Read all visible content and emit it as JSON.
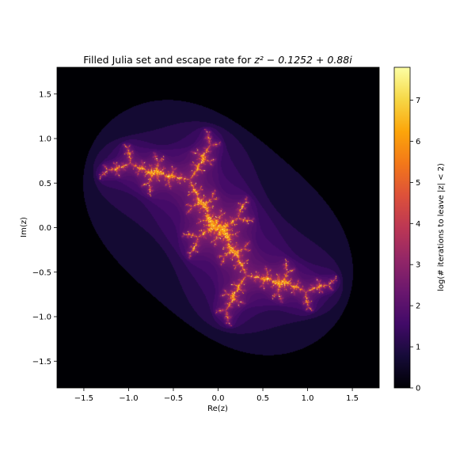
{
  "chart_data": {
    "type": "heatmap",
    "title_prefix": "Filled Julia set and escape rate for ",
    "title_math": "z² − 0.1252 + 0.88i",
    "xlabel": "Re(z)",
    "ylabel": "Im(z)",
    "xlim": [
      -1.8,
      1.8
    ],
    "ylim": [
      -1.8,
      1.8
    ],
    "x_ticks": [
      -1.5,
      -1.0,
      -0.5,
      0.0,
      0.5,
      1.0,
      1.5
    ],
    "x_tick_labels": [
      "−1.5",
      "−1.0",
      "−0.5",
      "0.0",
      "0.5",
      "1.0",
      "1.5"
    ],
    "y_ticks": [
      1.5,
      1.0,
      0.5,
      0.0,
      -0.5,
      -1.0,
      -1.5
    ],
    "y_tick_labels": [
      "1.5",
      "1.0",
      "0.5",
      "0.0",
      "−0.5",
      "−1.0",
      "−1.5"
    ],
    "julia_c": [
      -0.1252,
      0.88
    ],
    "escape_radius": 2,
    "colormap": "inferno",
    "colorbar": {
      "label": "log(# iterations to leave |z| < 2)",
      "range": [
        0,
        7.8
      ],
      "ticks": [
        0,
        1,
        2,
        3,
        4,
        5,
        6,
        7
      ],
      "tick_labels": [
        "0",
        "1",
        "2",
        "3",
        "4",
        "5",
        "6",
        "7"
      ]
    },
    "grid": false
  }
}
